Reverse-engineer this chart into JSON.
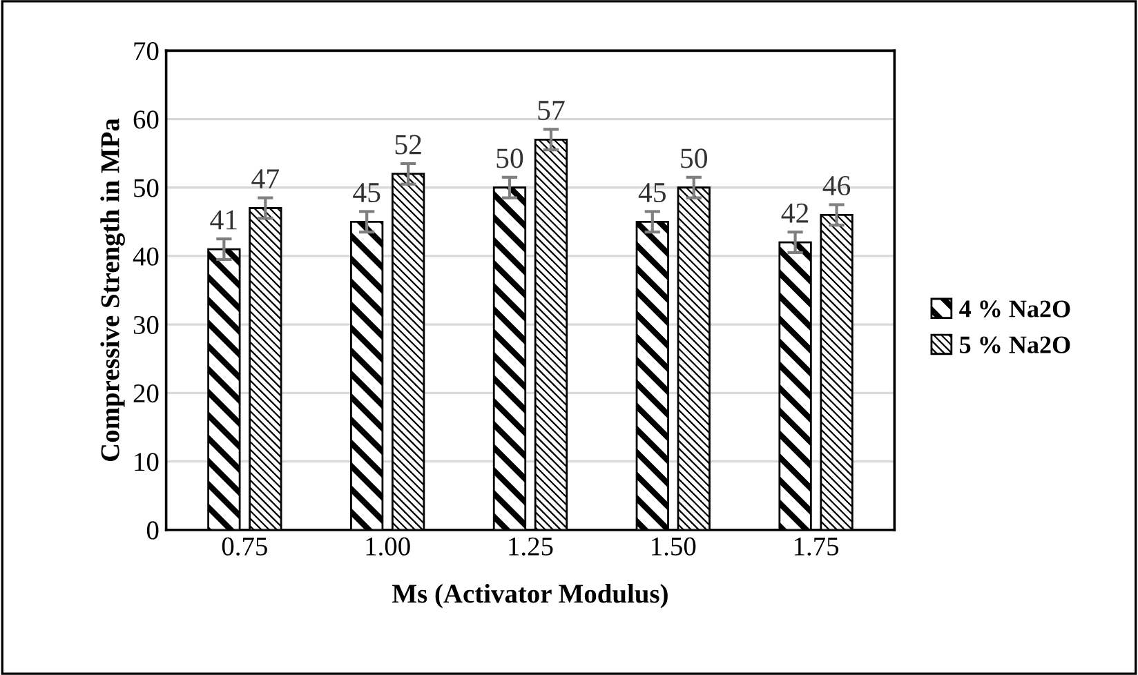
{
  "chart_data": {
    "type": "bar",
    "xlabel": "Ms (Activator Modulus)",
    "ylabel": "Compressive Strength in MPa",
    "categories": [
      "0.75",
      "1.00",
      "1.25",
      "1.50",
      "1.75"
    ],
    "series": [
      {
        "name": "4 % Na2O",
        "color": "#000000",
        "values": [
          41,
          45,
          50,
          45,
          42
        ],
        "errors": [
          1.5,
          1.5,
          1.5,
          1.5,
          1.5
        ]
      },
      {
        "name": "5 % Na2O",
        "color": "#000000",
        "values": [
          47,
          52,
          57,
          50,
          46
        ],
        "errors": [
          1.5,
          1.5,
          1.5,
          1.5,
          1.5
        ]
      }
    ],
    "ylim": [
      0,
      70
    ],
    "yticks": [
      0,
      10,
      20,
      30,
      40,
      50,
      60,
      70
    ],
    "grid": "y",
    "legend": "right",
    "data_labels": true
  }
}
